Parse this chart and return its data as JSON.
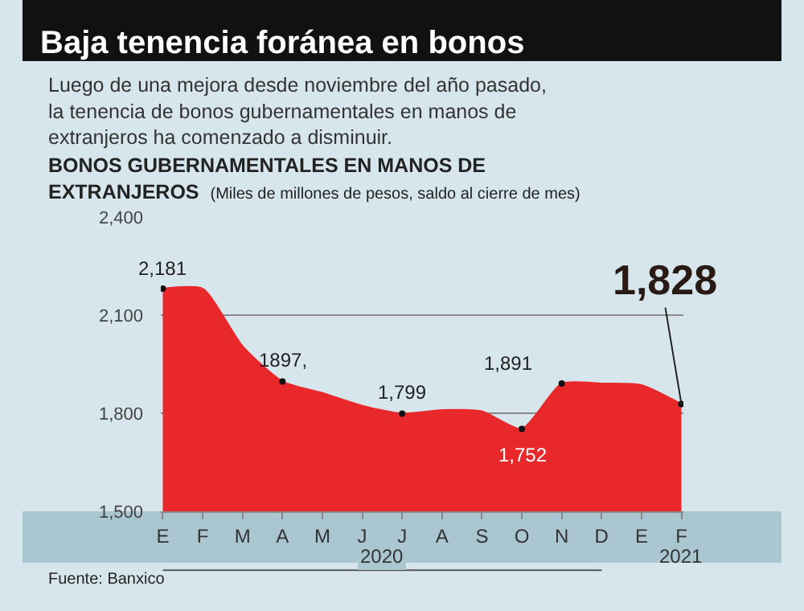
{
  "chart_data": {
    "type": "area",
    "title": "Baja tenencia foránea en bonos",
    "subtitle": "Luego de una mejora desde noviembre del año pasado, la tenencia de bonos gubernamentales en manos de extranjeros ha comenzado a disminuir.",
    "ylabel": "BONOS GUBERNAMENTALES EN MANOS DE EXTRANJEROS",
    "annotations": [
      "(Miles de millones de pesos, saldo al cierre de mes)",
      "2020",
      "2021",
      "Fuente: Banxico"
    ],
    "categories": [
      "E",
      "F",
      "M",
      "A",
      "M",
      "J",
      "J",
      "A",
      "S",
      "O",
      "N",
      "D",
      "E",
      "F"
    ],
    "values": [
      2181,
      2181,
      2005,
      1897,
      1862,
      1823,
      1799,
      1810,
      1806,
      1752,
      1891,
      1891,
      1886,
      1828
    ],
    "value_labels": [
      "2,181",
      null,
      null,
      "1897,",
      null,
      null,
      "1,799",
      null,
      null,
      "1,752",
      "1,891",
      null,
      null,
      "1,828"
    ],
    "color": "#e8282b",
    "ylim": [
      1500,
      2400
    ],
    "yticks": [
      {
        "value": 1500,
        "label": "1,500"
      },
      {
        "value": 1800,
        "label": "1,800"
      },
      {
        "value": 2100,
        "label": "2,100"
      },
      {
        "value": 2400,
        "label": "2,400"
      }
    ],
    "grid": "y",
    "legend": false
  }
}
